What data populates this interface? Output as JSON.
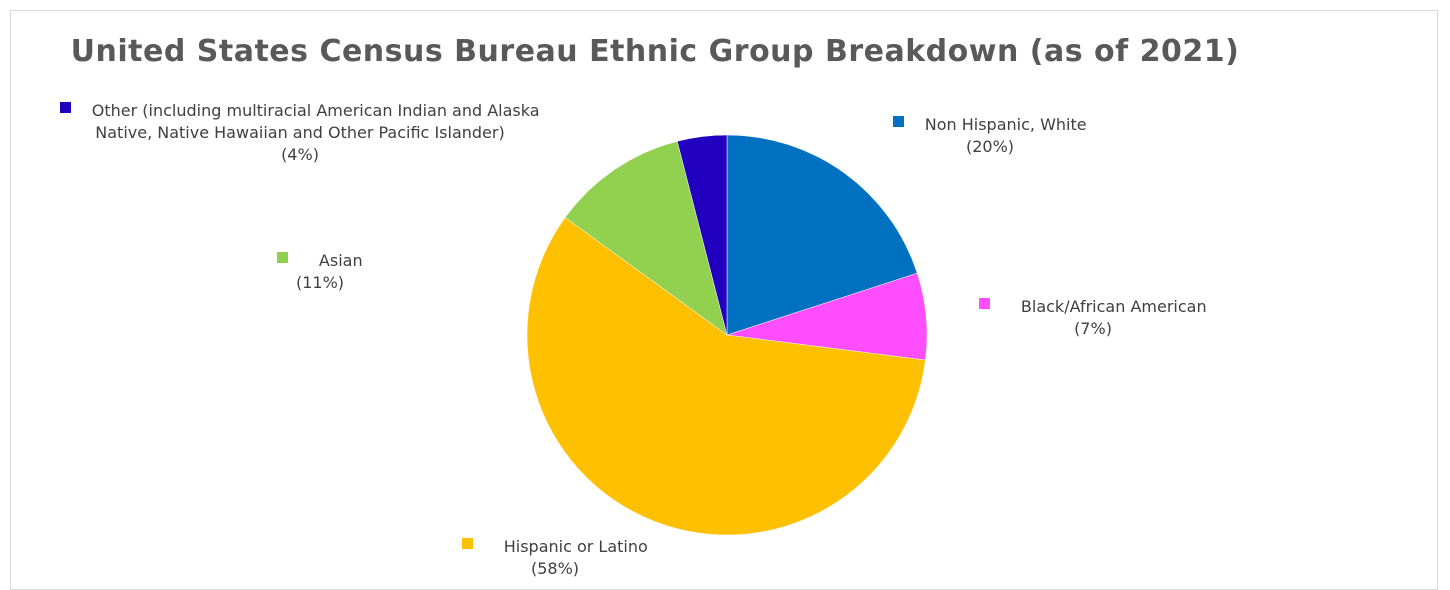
{
  "chart_data": {
    "type": "pie",
    "title": "United States Census Bureau Ethnic Group Breakdown (as of 2021)",
    "slices": [
      {
        "label": "Non Hispanic, White",
        "value": 20,
        "pct_label": "(20%)",
        "color": "#0070c0"
      },
      {
        "label": "Black/African American",
        "value": 7,
        "pct_label": "(7%)",
        "color": "#ff4dff"
      },
      {
        "label": "Hispanic or Latino",
        "value": 58,
        "pct_label": "(58%)",
        "color": "#ffc000"
      },
      {
        "label": "Asian",
        "value": 11,
        "pct_label": "(11%)",
        "color": "#92d050"
      },
      {
        "label": "Other (including multiracial American Indian and Alaska Native, Native Hawaiian and Other Pacific Islander)",
        "value": 4,
        "pct_label": "(4%)",
        "color": "#2200c0"
      }
    ],
    "legend": "data-labels"
  }
}
